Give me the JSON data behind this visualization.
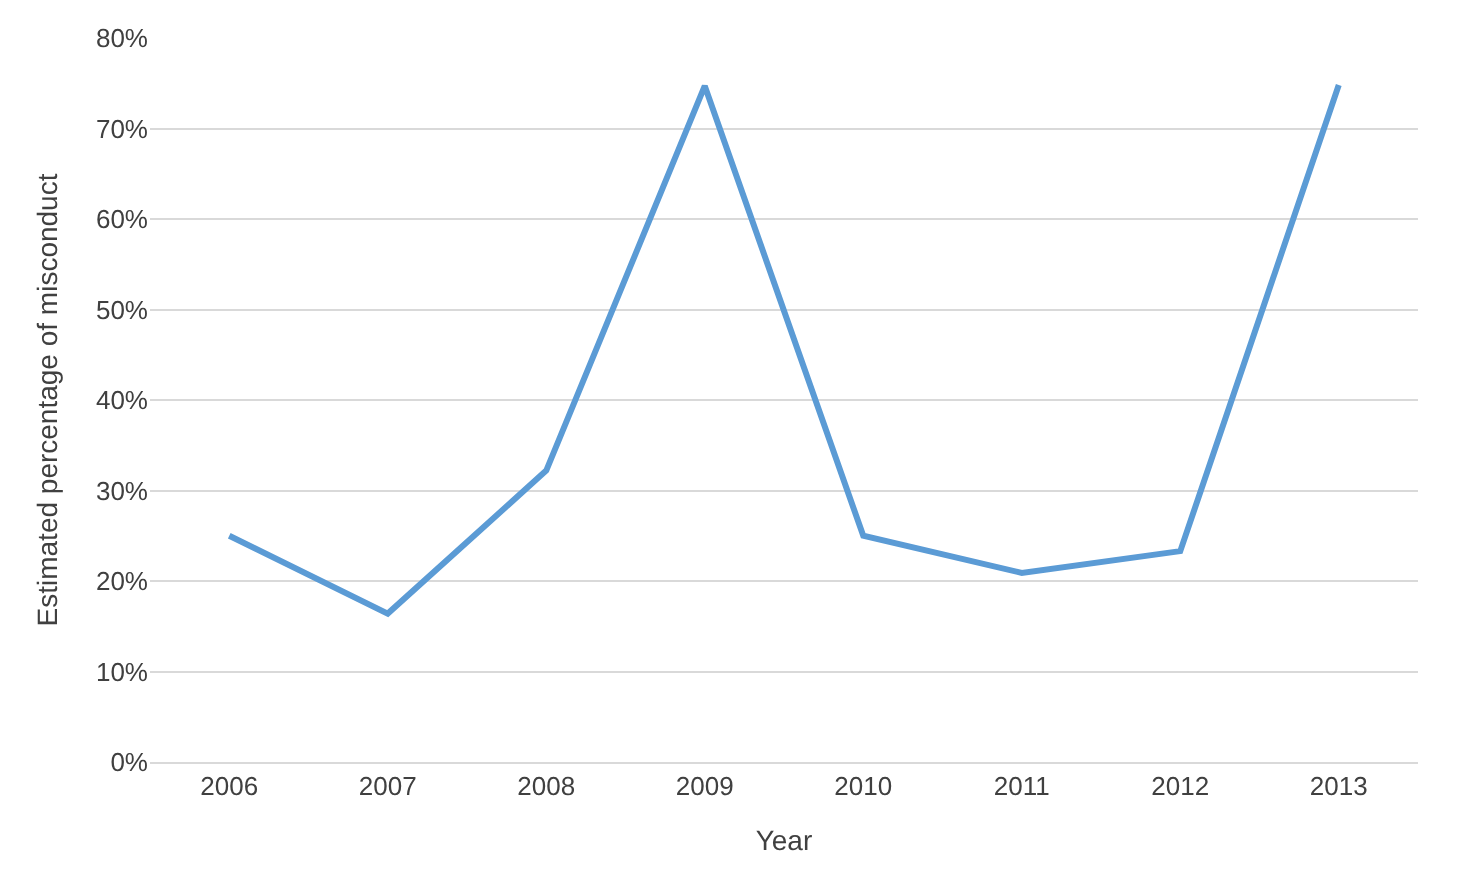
{
  "chart_data": {
    "type": "line",
    "xlabel": "Year",
    "ylabel": "Estimated percentage of misconduct",
    "categories": [
      "2006",
      "2007",
      "2008",
      "2009",
      "2010",
      "2011",
      "2012",
      "2013"
    ],
    "series": [
      {
        "color": "#5b9bd5",
        "values": [
          25,
          16.4,
          32.2,
          74.7,
          25,
          20.9,
          23.3,
          74.8
        ]
      }
    ],
    "ylim": [
      0,
      80
    ],
    "yticks": [
      {
        "value": 0,
        "label": "0%"
      },
      {
        "value": 10,
        "label": "10%"
      },
      {
        "value": 20,
        "label": "20%"
      },
      {
        "value": 30,
        "label": "30%"
      },
      {
        "value": 40,
        "label": "40%"
      },
      {
        "value": 50,
        "label": "50%"
      },
      {
        "value": 60,
        "label": "60%"
      },
      {
        "value": 70,
        "label": "70%"
      },
      {
        "value": 80,
        "label": "80%"
      }
    ],
    "grid": "y",
    "marker": "none",
    "line_style": "solid"
  }
}
